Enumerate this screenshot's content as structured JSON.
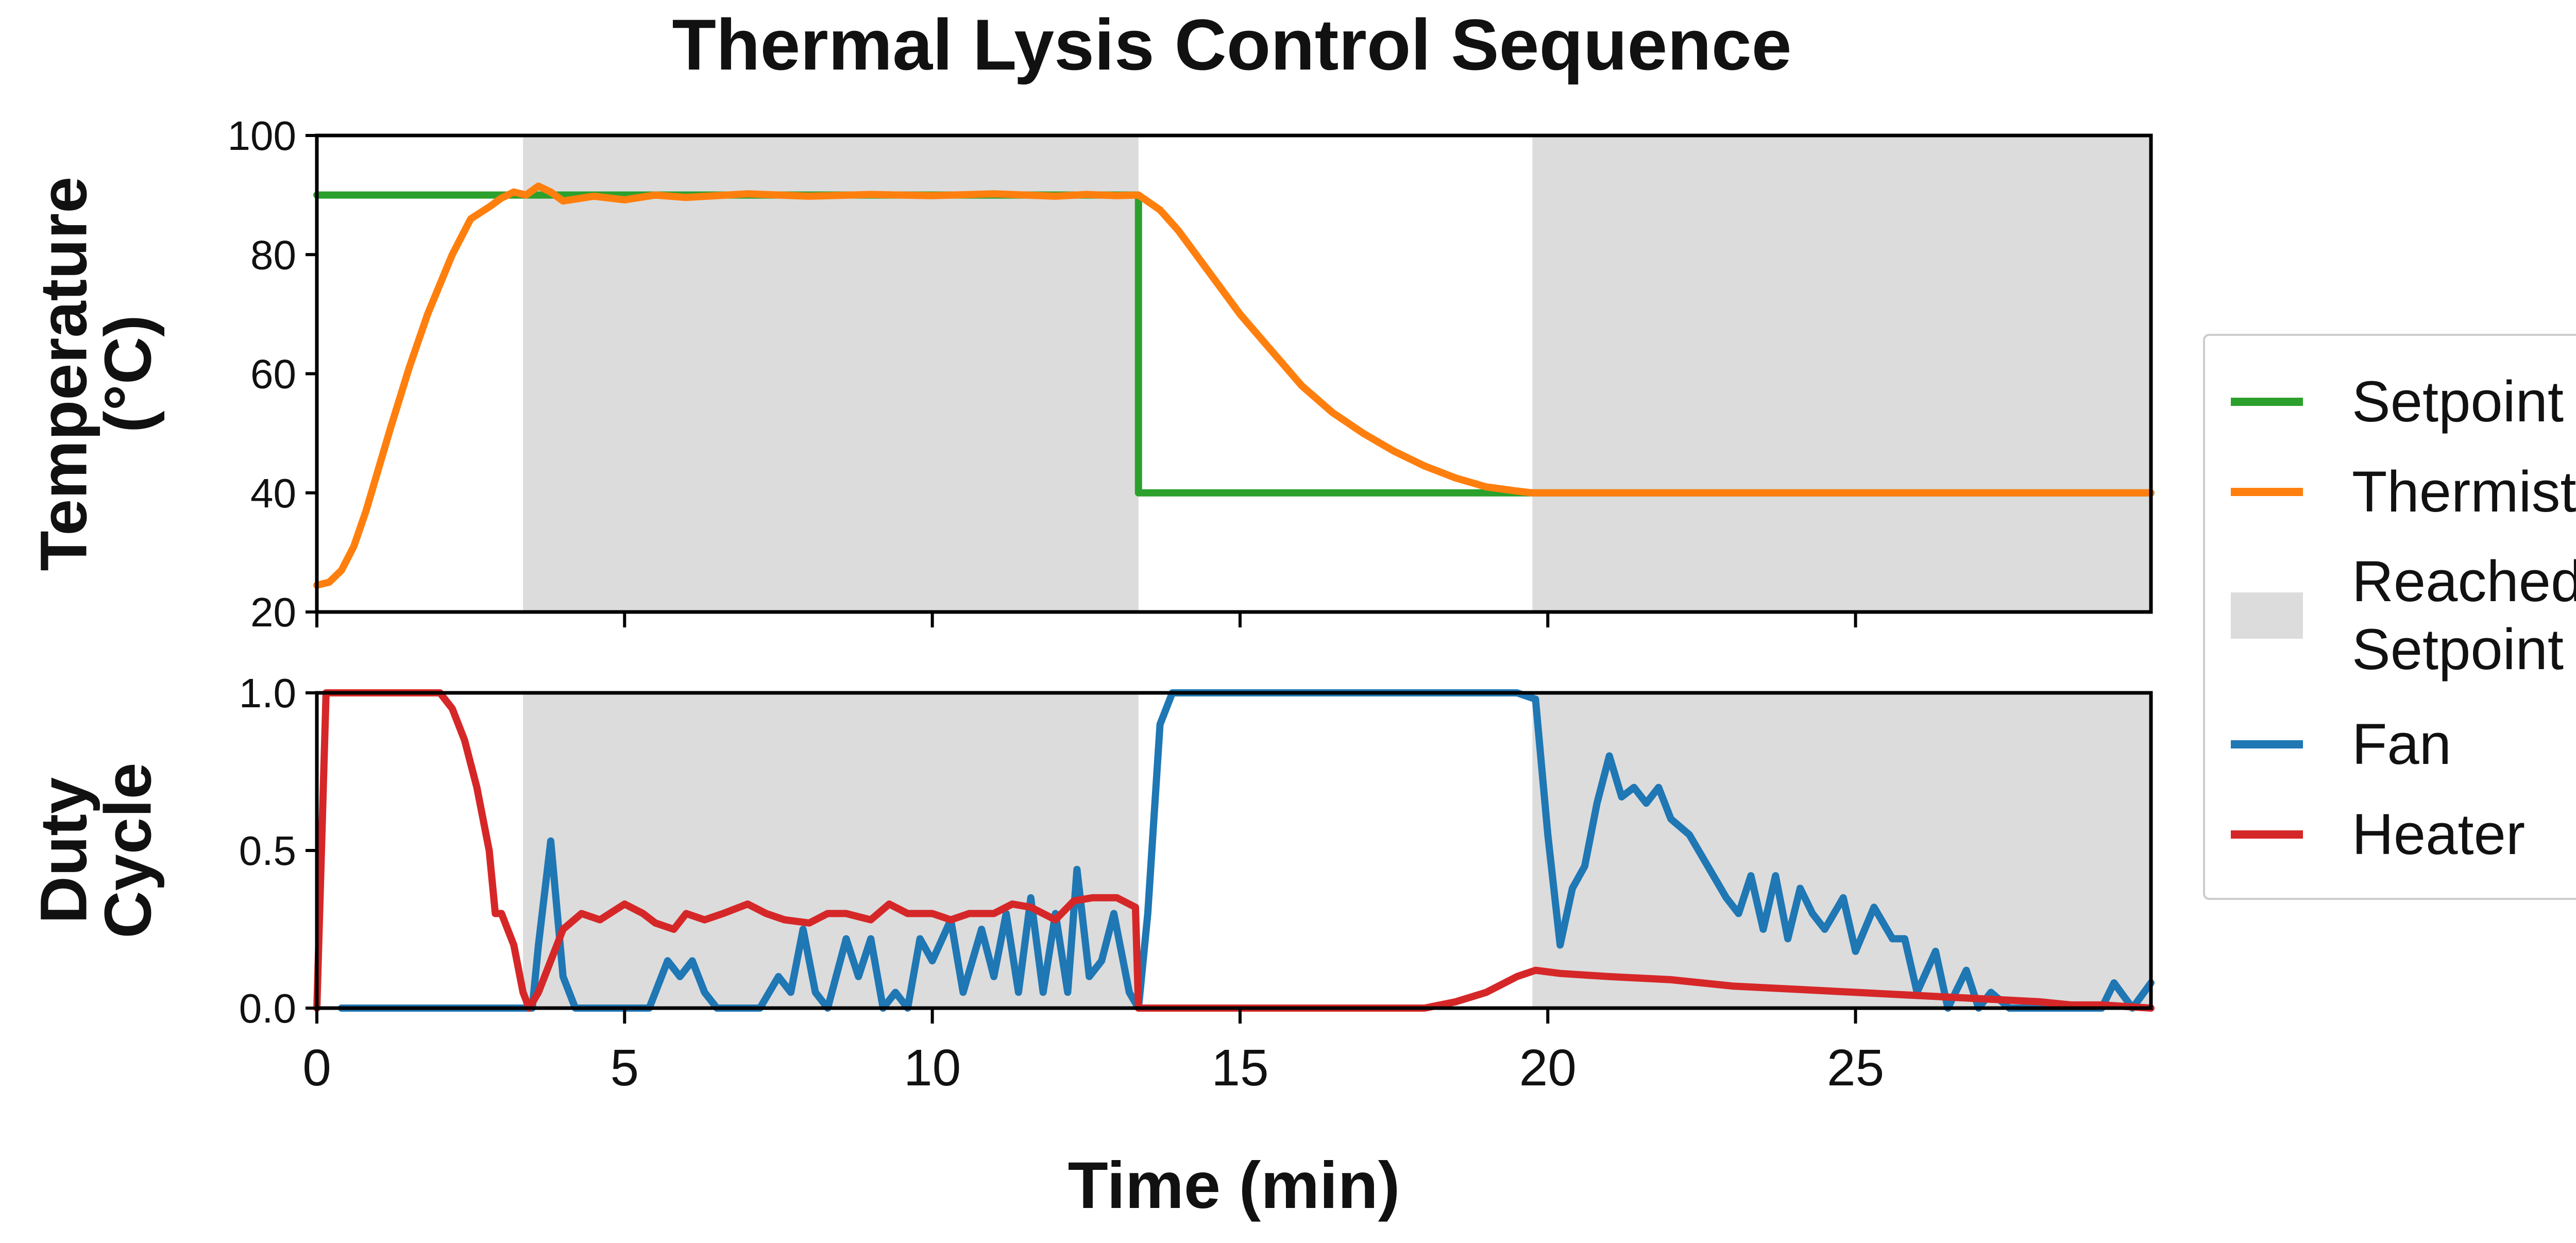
{
  "chart_data": {
    "title": "Thermal Lysis Control Sequence",
    "xlabel": "Time (min)",
    "xlim": [
      0,
      29.8
    ],
    "x_ticks": [
      0,
      5,
      10,
      15,
      20,
      25
    ],
    "colors": {
      "setpoint": "#2ca02c",
      "thermistor": "#ff7f0e",
      "shade": "#dcdcdc",
      "fan": "#1f77b4",
      "heater": "#d62728"
    },
    "shaded_regions": [
      [
        3.35,
        13.35
      ],
      [
        19.75,
        29.8
      ]
    ],
    "legend": {
      "position": "right",
      "entries": [
        {
          "label": "Setpoint",
          "type": "line",
          "color": "#2ca02c"
        },
        {
          "label": "Thermistor",
          "type": "line",
          "color": "#ff7f0e"
        },
        {
          "label": "Reached\nSetpoint",
          "type": "patch",
          "color": "#dcdcdc"
        },
        {
          "label": "Fan",
          "type": "line",
          "color": "#1f77b4"
        },
        {
          "label": "Heater",
          "type": "line",
          "color": "#d62728"
        }
      ]
    },
    "panels": [
      {
        "type": "line",
        "ylabel": "Temperature\n(°C)",
        "ylim": [
          20,
          100
        ],
        "y_ticks": [
          20,
          40,
          60,
          80,
          100
        ],
        "series": [
          {
            "name": "Setpoint",
            "color": "#2ca02c",
            "x": [
              0,
              13.35,
              13.35,
              29.8
            ],
            "y": [
              90,
              90,
              40,
              40
            ]
          },
          {
            "name": "Thermistor",
            "color": "#ff7f0e",
            "x": [
              0,
              0.2,
              0.4,
              0.6,
              0.8,
              1.0,
              1.2,
              1.5,
              1.8,
              2.0,
              2.2,
              2.5,
              2.8,
              3.0,
              3.2,
              3.4,
              3.6,
              3.8,
              4.0,
              4.5,
              5.0,
              5.5,
              6.0,
              7.0,
              8.0,
              9.0,
              10.0,
              11.0,
              12.0,
              12.5,
              13.0,
              13.35,
              13.7,
              14.0,
              14.5,
              15.0,
              15.5,
              16.0,
              16.5,
              17.0,
              17.5,
              18.0,
              18.5,
              19.0,
              19.5,
              19.75,
              20.0,
              21.0,
              22.0,
              23.0,
              24.0,
              25.0,
              26.0,
              27.0,
              28.0,
              29.0,
              29.8
            ],
            "y": [
              24.5,
              25,
              27,
              31,
              37,
              44,
              51,
              61,
              70,
              75,
              80,
              86,
              88,
              89.5,
              90.5,
              90,
              91.5,
              90.5,
              89,
              89.8,
              89.2,
              90,
              89.6,
              90.2,
              89.8,
              90.1,
              89.9,
              90.2,
              89.8,
              90.1,
              89.9,
              90,
              87.5,
              84,
              77,
              70,
              64,
              58,
              53.5,
              50,
              47,
              44.5,
              42.5,
              41,
              40.3,
              40,
              40,
              40,
              40,
              40,
              40,
              40,
              40,
              40,
              40,
              40,
              40
            ]
          }
        ]
      },
      {
        "type": "line",
        "ylabel": "Duty\nCycle",
        "ylim": [
          0,
          1
        ],
        "y_ticks": [
          "0.0",
          "0.5",
          "1.0"
        ],
        "series": [
          {
            "name": "Fan",
            "color": "#1f77b4",
            "x": [
              0.4,
              3.5,
              3.6,
              3.8,
              4.0,
              4.2,
              4.4,
              5.4,
              5.7,
              5.9,
              6.1,
              6.3,
              6.5,
              7.2,
              7.5,
              7.7,
              7.9,
              8.1,
              8.3,
              8.6,
              8.8,
              9.0,
              9.2,
              9.4,
              9.6,
              9.8,
              10.0,
              10.3,
              10.5,
              10.8,
              11.0,
              11.2,
              11.4,
              11.6,
              11.8,
              12.0,
              12.2,
              12.35,
              12.55,
              12.75,
              12.95,
              13.2,
              13.35,
              13.5,
              13.7,
              13.9,
              14.2,
              19.2,
              19.5,
              19.8,
              20.0,
              20.2,
              20.4,
              20.6,
              20.8,
              21.0,
              21.2,
              21.4,
              21.6,
              21.8,
              22.0,
              22.3,
              22.6,
              22.9,
              23.1,
              23.3,
              23.5,
              23.7,
              23.9,
              24.1,
              24.3,
              24.5,
              24.8,
              25.0,
              25.3,
              25.6,
              25.8,
              26.0,
              26.3,
              26.5,
              26.8,
              27.0,
              27.2,
              27.5,
              28.0,
              28.5,
              29.0,
              29.2,
              29.5,
              29.8
            ],
            "y": [
              0,
              0,
              0.2,
              0.53,
              0.1,
              0,
              0,
              0,
              0.15,
              0.1,
              0.15,
              0.05,
              0,
              0,
              0.1,
              0.05,
              0.25,
              0.05,
              0,
              0.22,
              0.1,
              0.22,
              0,
              0.05,
              0,
              0.22,
              0.15,
              0.28,
              0.05,
              0.25,
              0.1,
              0.3,
              0.05,
              0.35,
              0.05,
              0.3,
              0.05,
              0.44,
              0.1,
              0.15,
              0.3,
              0.05,
              0,
              0.3,
              0.9,
              1.0,
              1.0,
              1.0,
              1.0,
              0.98,
              0.55,
              0.2,
              0.38,
              0.45,
              0.65,
              0.8,
              0.67,
              0.7,
              0.65,
              0.7,
              0.6,
              0.55,
              0.45,
              0.35,
              0.3,
              0.42,
              0.25,
              0.42,
              0.22,
              0.38,
              0.3,
              0.25,
              0.35,
              0.18,
              0.32,
              0.22,
              0.22,
              0.05,
              0.18,
              0.0,
              0.12,
              0,
              0.05,
              0,
              0,
              0,
              0,
              0.08,
              0,
              0.08
            ]
          },
          {
            "name": "Heater",
            "color": "#d62728",
            "x": [
              0,
              0.15,
              0.5,
              1.0,
              1.5,
              2.0,
              2.2,
              2.4,
              2.6,
              2.8,
              2.9,
              3.0,
              3.1,
              3.2,
              3.35,
              3.45,
              3.6,
              3.8,
              4.0,
              4.3,
              4.6,
              5.0,
              5.3,
              5.5,
              5.8,
              6.0,
              6.3,
              6.6,
              7.0,
              7.3,
              7.6,
              8.0,
              8.3,
              8.6,
              9.0,
              9.3,
              9.6,
              10.0,
              10.3,
              10.6,
              11.0,
              11.3,
              11.6,
              12.0,
              12.3,
              12.6,
              13.0,
              13.3,
              13.35,
              13.6,
              14.0,
              15.0,
              16.0,
              17.0,
              18.0,
              18.5,
              19.0,
              19.5,
              19.8,
              20.2,
              21.0,
              22.0,
              23.0,
              24.0,
              25.0,
              26.0,
              27.0,
              28.0,
              28.5,
              29.0,
              29.8
            ],
            "y": [
              0,
              1.0,
              1.0,
              1.0,
              1.0,
              1.0,
              0.95,
              0.85,
              0.7,
              0.5,
              0.3,
              0.3,
              0.25,
              0.2,
              0.05,
              0.0,
              0.05,
              0.15,
              0.25,
              0.3,
              0.28,
              0.33,
              0.3,
              0.27,
              0.25,
              0.3,
              0.28,
              0.3,
              0.33,
              0.3,
              0.28,
              0.27,
              0.3,
              0.3,
              0.28,
              0.33,
              0.3,
              0.3,
              0.28,
              0.3,
              0.3,
              0.33,
              0.32,
              0.28,
              0.34,
              0.35,
              0.35,
              0.32,
              0.0,
              0.0,
              0.0,
              0.0,
              0.0,
              0.0,
              0.0,
              0.02,
              0.05,
              0.1,
              0.12,
              0.11,
              0.1,
              0.09,
              0.07,
              0.06,
              0.05,
              0.04,
              0.03,
              0.02,
              0.01,
              0.01,
              0.0
            ]
          }
        ]
      }
    ]
  }
}
